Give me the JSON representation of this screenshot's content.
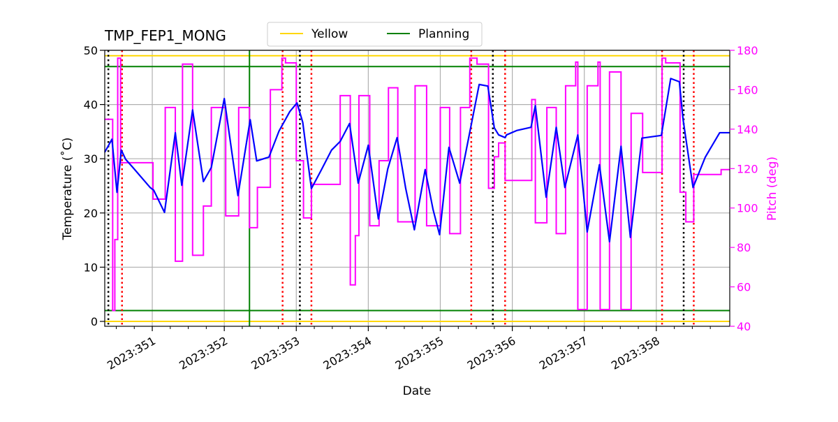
{
  "chart_data": {
    "type": "line",
    "title": "TMP_FEP1_MONG",
    "xlabel": "Date",
    "ylabel": "Temperature (˚C)",
    "y2label": "Pitch (deg)",
    "xlim": [
      350.34,
      359.02
    ],
    "ylim": [
      -0.9,
      50
    ],
    "y2lim": [
      40,
      180
    ],
    "x_ticks": [
      351,
      352,
      353,
      354,
      355,
      356,
      357,
      358
    ],
    "x_tick_labels": [
      "2023:351",
      "2023:352",
      "2023:353",
      "2023:354",
      "2023:355",
      "2023:356",
      "2023:357",
      "2023:358"
    ],
    "x_minor_step": 0.25,
    "y_ticks": [
      0,
      10,
      20,
      30,
      40,
      50
    ],
    "y_tick_labels": [
      "0",
      "10",
      "20",
      "30",
      "40",
      "50"
    ],
    "y2_ticks": [
      40,
      60,
      80,
      100,
      120,
      140,
      160,
      180
    ],
    "y2_tick_labels": [
      "40",
      "60",
      "80",
      "100",
      "120",
      "140",
      "160",
      "180"
    ],
    "grid": true,
    "legend": {
      "placement": "top-center",
      "entries": [
        {
          "label": "Yellow",
          "color": "#ffd700"
        },
        {
          "label": "Planning",
          "color": "#008000"
        }
      ]
    },
    "colors": {
      "temperature": "#0000ff",
      "pitch": "#ff00ff",
      "yellow": "#ffd700",
      "planning": "#008000",
      "black_marker": "#000000",
      "red_marker": "#ff0000",
      "grid": "#b0b0b0",
      "y2_axis": "#ff00ff"
    },
    "yellow_limits": [
      0,
      49
    ],
    "planning_limits": [
      2,
      47
    ],
    "planning_vertical": [
      352.35
    ],
    "black_dotted_x": [
      350.39,
      353.05,
      355.73,
      358.38
    ],
    "red_dotted_x": [
      350.58,
      352.81,
      353.21,
      355.43,
      355.9,
      358.08,
      358.52
    ],
    "temperature": {
      "x": [
        350.34,
        350.44,
        350.51,
        350.57,
        350.63,
        350.73,
        350.97,
        351.02,
        351.17,
        351.32,
        351.41,
        351.56,
        351.71,
        351.82,
        352.0,
        352.19,
        352.36,
        352.45,
        352.62,
        352.76,
        352.91,
        353.01,
        353.09,
        353.15,
        353.21,
        353.35,
        353.49,
        353.61,
        353.74,
        353.86,
        354.0,
        354.14,
        354.27,
        354.4,
        354.52,
        354.64,
        354.79,
        354.9,
        354.99,
        355.12,
        355.27,
        355.54,
        355.66,
        355.75,
        355.81,
        355.9,
        355.92,
        356.06,
        356.26,
        356.32,
        356.47,
        356.61,
        356.73,
        356.91,
        357.04,
        357.21,
        357.35,
        357.51,
        357.64,
        357.8,
        358.07,
        358.2,
        358.32,
        358.37,
        358.51,
        358.68,
        358.88,
        359.02
      ],
      "y": [
        31.2,
        33.6,
        23.8,
        31.6,
        29.9,
        28.4,
        24.7,
        24.2,
        20.1,
        34.8,
        25.1,
        39.0,
        25.8,
        28.4,
        41.1,
        23.2,
        37.2,
        29.6,
        30.3,
        35.1,
        38.7,
        40.3,
        36.7,
        30.5,
        24.5,
        28.0,
        31.6,
        33.2,
        36.5,
        25.5,
        32.5,
        18.9,
        28.1,
        33.9,
        24.5,
        16.9,
        28.0,
        20.6,
        16.0,
        32.1,
        25.5,
        43.7,
        43.4,
        35.7,
        34.4,
        33.9,
        34.4,
        35.2,
        35.8,
        39.8,
        22.9,
        35.8,
        24.7,
        34.4,
        16.5,
        28.9,
        14.7,
        32.3,
        15.5,
        33.8,
        34.3,
        44.8,
        44.2,
        37.4,
        24.7,
        30.3,
        34.8,
        34.8
      ]
    },
    "pitch": {
      "x": [
        350.34,
        350.45,
        350.48,
        350.52,
        350.56,
        351.01,
        351.18,
        351.32,
        351.42,
        351.56,
        351.71,
        351.82,
        352.02,
        352.2,
        352.35,
        352.46,
        352.64,
        352.8,
        352.85,
        353.0,
        353.1,
        353.21,
        353.61,
        353.75,
        353.82,
        353.87,
        354.02,
        354.15,
        354.28,
        354.41,
        354.65,
        354.81,
        355.0,
        355.13,
        355.28,
        355.41,
        355.51,
        355.67,
        355.75,
        355.81,
        355.9,
        356.27,
        356.32,
        356.48,
        356.61,
        356.74,
        356.88,
        356.91,
        357.04,
        357.19,
        357.22,
        357.35,
        357.51,
        357.65,
        357.81,
        358.08,
        358.13,
        358.33,
        358.41,
        358.52,
        358.9,
        359.02
      ],
      "y": [
        145,
        48,
        84,
        176,
        123,
        104.5,
        151,
        73,
        173,
        76,
        101,
        151,
        96,
        151,
        90,
        110.5,
        160,
        176,
        173.6,
        124,
        95,
        112,
        157,
        61,
        86,
        157,
        91,
        124,
        161,
        93,
        162,
        91,
        151,
        87,
        151,
        176,
        173,
        110,
        126,
        133,
        114,
        155,
        92.5,
        151,
        87,
        162,
        174,
        48.5,
        162,
        174,
        48.5,
        169,
        48.5,
        148,
        118,
        176,
        173.6,
        108,
        93,
        117,
        119.5,
        119.5
      ]
    }
  }
}
